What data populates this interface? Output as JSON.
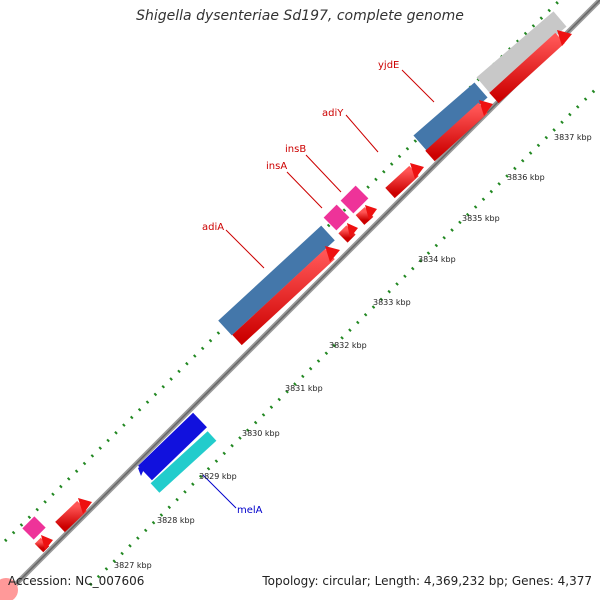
{
  "header": {
    "title": "Shigella dysenteriae Sd197, complete genome"
  },
  "footer": {
    "accession": "Accession: NC_007606",
    "summary": "Topology: circular; Length: 4,369,232 bp; Genes: 4,377"
  },
  "ticks": [
    {
      "label": "3827 kbp"
    },
    {
      "label": "3828 kbp"
    },
    {
      "label": "3829 kbp"
    },
    {
      "label": "3830 kbp"
    },
    {
      "label": "3831 kbp"
    },
    {
      "label": "3832 kbp"
    },
    {
      "label": "3833 kbp"
    },
    {
      "label": "3834 kbp"
    },
    {
      "label": "3835 kbp"
    },
    {
      "label": "3836 kbp"
    },
    {
      "label": "3837 kbp"
    }
  ],
  "gene_labels": [
    {
      "name": "yjdE",
      "color": "#cc0000"
    },
    {
      "name": "adiY",
      "color": "#cc0000"
    },
    {
      "name": "insB",
      "color": "#cc0000"
    },
    {
      "name": "insA",
      "color": "#cc0000"
    },
    {
      "name": "adiA",
      "color": "#cc0000"
    },
    {
      "name": "melA",
      "color": "#0000cc"
    }
  ],
  "colors": {
    "cds": "#ee1111",
    "gene_blue": "#4477aa",
    "insertion_pink": "#ee3399",
    "melA_blue": "#1111dd",
    "cyan": "#22cccc",
    "grey": "#c8c8c8",
    "backbone": "#888888",
    "tick_dots": "#228822"
  }
}
